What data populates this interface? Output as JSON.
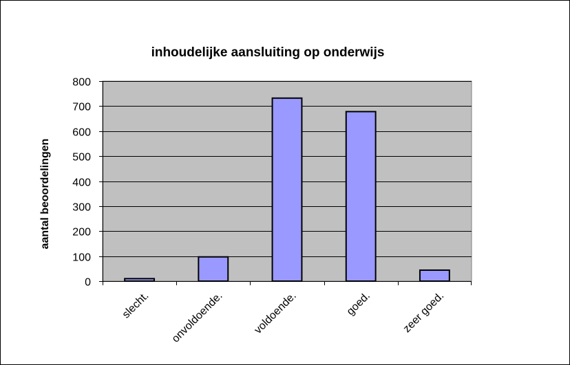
{
  "chart_data": {
    "type": "bar",
    "title": "inhoudelijke aansluiting op onderwijs",
    "xlabel": "",
    "ylabel": "aantal beoordelingen",
    "categories": [
      "slecht.",
      "onvoldoende.",
      "voldoende.",
      "goed.",
      "zeer goed."
    ],
    "values": [
      10,
      97,
      732,
      678,
      44
    ],
    "ylim": [
      0,
      800
    ],
    "yticks": [
      0,
      100,
      200,
      300,
      400,
      500,
      600,
      700,
      800
    ],
    "grid": true,
    "legend": "none",
    "colors": {
      "bar_fill": "#9999ff",
      "bar_stroke": "#000000",
      "plot_background": "#c0c0c0",
      "gridline": "#000000"
    }
  }
}
